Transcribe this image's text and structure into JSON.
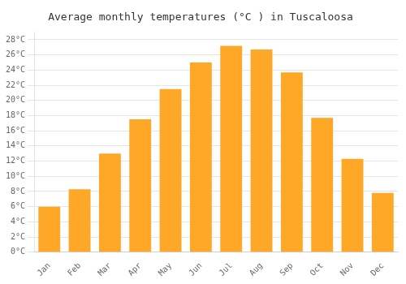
{
  "chart_data": {
    "type": "bar",
    "title": "Average monthly temperatures (°C ) in Tuscaloosa",
    "categories": [
      "Jan",
      "Feb",
      "Mar",
      "Apr",
      "May",
      "Jun",
      "Jul",
      "Aug",
      "Sep",
      "Oct",
      "Nov",
      "Dec"
    ],
    "values": [
      6.0,
      8.3,
      13.0,
      17.5,
      21.5,
      25.0,
      27.2,
      26.7,
      23.7,
      17.7,
      12.3,
      7.8
    ],
    "color": "#FFA726",
    "ylim": [
      0,
      29
    ],
    "yticks": [
      {
        "value": 0,
        "label": "0°C"
      },
      {
        "value": 2,
        "label": "2°C"
      },
      {
        "value": 4,
        "label": "4°C"
      },
      {
        "value": 6,
        "label": "6°C"
      },
      {
        "value": 8,
        "label": "8°C"
      },
      {
        "value": 10,
        "label": "10°C"
      },
      {
        "value": 12,
        "label": "12°C"
      },
      {
        "value": 14,
        "label": "14°C"
      },
      {
        "value": 16,
        "label": "16°C"
      },
      {
        "value": 18,
        "label": "18°C"
      },
      {
        "value": 20,
        "label": "20°C"
      },
      {
        "value": 22,
        "label": "22°C"
      },
      {
        "value": 24,
        "label": "24°C"
      },
      {
        "value": 26,
        "label": "26°C"
      },
      {
        "value": 28,
        "label": "28°C"
      }
    ],
    "grid": true
  }
}
